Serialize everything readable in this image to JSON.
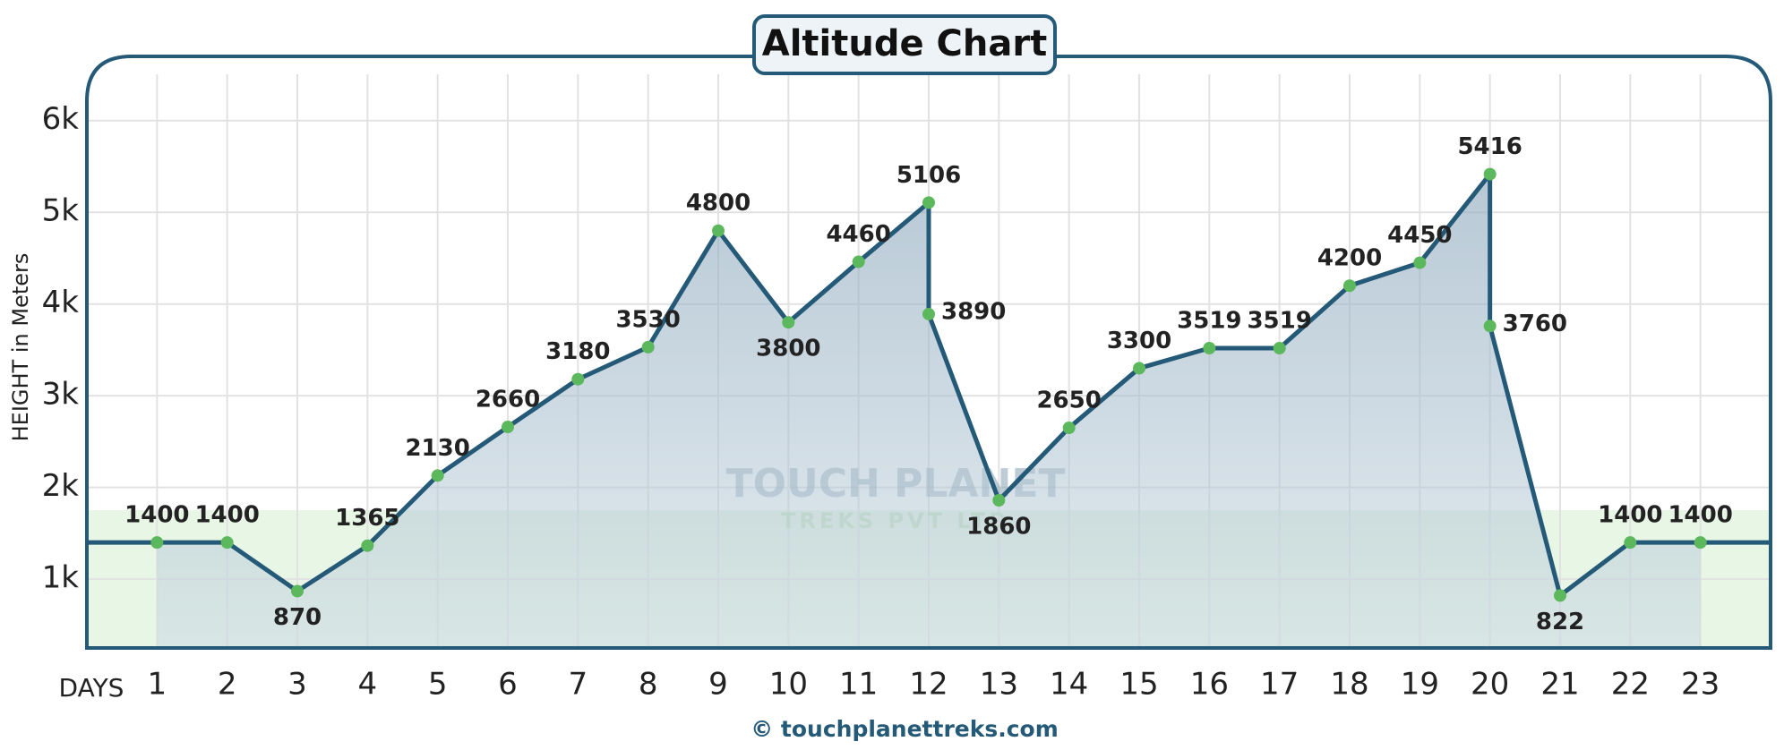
{
  "chart_data": {
    "type": "line",
    "title": "Altitude Chart",
    "x_label": "DAYS",
    "y_label": "HEIGHT in Meters",
    "footer": "© touchplanettreks.com",
    "watermark": [
      "TOUCH PLANET",
      "TREKS PVT LTD"
    ],
    "x": [
      1,
      2,
      3,
      4,
      5,
      6,
      7,
      8,
      9,
      10,
      11,
      12,
      12,
      13,
      14,
      15,
      16,
      17,
      18,
      19,
      20,
      20,
      21,
      22,
      23
    ],
    "series": [
      {
        "name": "Altitude",
        "color": "#245a78",
        "point_color": "#5cb85c",
        "values": [
          1400,
          1400,
          870,
          1365,
          2130,
          2660,
          3180,
          3530,
          4800,
          3800,
          4460,
          5106,
          3890,
          1860,
          2650,
          3300,
          3519,
          3519,
          4200,
          4450,
          5416,
          3760,
          822,
          1400,
          1400
        ]
      }
    ],
    "xlim": [
      0,
      24
    ],
    "xticks": [
      1,
      2,
      3,
      4,
      5,
      6,
      7,
      8,
      9,
      10,
      11,
      12,
      13,
      14,
      15,
      16,
      17,
      18,
      19,
      20,
      21,
      22,
      23
    ],
    "ylim": [
      250,
      6700
    ],
    "yticks": [
      {
        "value": 1000,
        "label": "1k"
      },
      {
        "value": 2000,
        "label": "2k"
      },
      {
        "value": 3000,
        "label": "3k"
      },
      {
        "value": 4000,
        "label": "4k"
      },
      {
        "value": 5000,
        "label": "5k"
      },
      {
        "value": 6000,
        "label": "6k"
      }
    ],
    "grid": true
  }
}
